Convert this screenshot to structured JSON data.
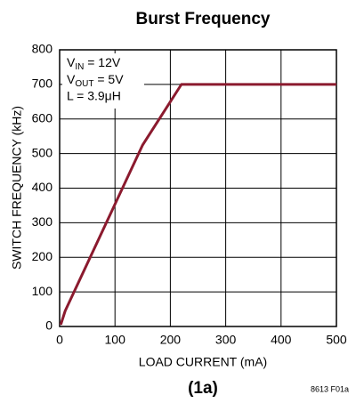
{
  "chart_data": {
    "type": "line",
    "title": "Burst Frequency",
    "x_label": "LOAD CURRENT (mA)",
    "y_label": "SWITCH FREQUENCY (kHz)",
    "series": [
      {
        "name": "Switch frequency",
        "color": "#8b1a2e",
        "x": [
          2,
          10,
          150,
          220,
          500
        ],
        "values": [
          5,
          45,
          525,
          700,
          700
        ]
      }
    ],
    "xlim": [
      0,
      500
    ],
    "xticks": [
      0,
      100,
      200,
      300,
      400,
      500
    ],
    "ylim": [
      0,
      800
    ],
    "yticks": [
      0,
      100,
      200,
      300,
      400,
      500,
      600,
      700,
      800
    ],
    "grid": true,
    "annotations": [
      {
        "main": "V",
        "sub": "IN",
        "rest": " = 12V"
      },
      {
        "main": "V",
        "sub": "OUT",
        "rest": " = 5V"
      },
      {
        "main": "L = 3.9μH"
      }
    ],
    "caption": "(1a)",
    "figure_code": "8613 F01a"
  }
}
